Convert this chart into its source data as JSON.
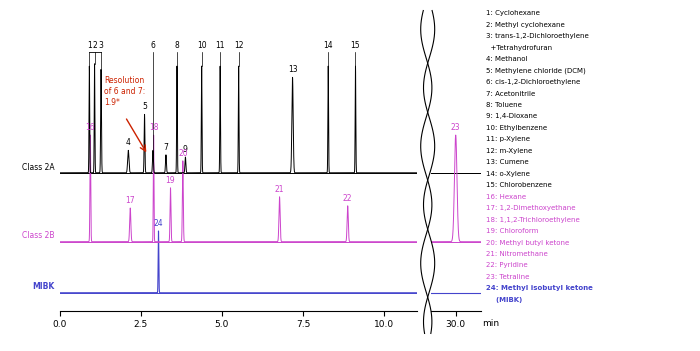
{
  "colors": {
    "black": "#000000",
    "magenta": "#cc44cc",
    "blue": "#4444cc",
    "red": "#cc2200"
  },
  "offsets": {
    "black": 0.52,
    "magenta": 0.25,
    "blue": 0.05
  },
  "scale": 0.44,
  "right_text_black": [
    "1: Cyclohexane",
    "2: Methyl cyclohexane",
    "3: trans-1,2-Dichloroethylene",
    "  +Tetrahydrofuran",
    "4: Methanol",
    "5: Methylene chloride (DCM)",
    "6: cis-1,2-Dichloroethylene",
    "7: Acetonitrile",
    "8: Toluene",
    "9: 1,4-Dioxane",
    "10: Ethylbenzene",
    "11: p-Xylene",
    "12: m-Xylene",
    "13: Cumene",
    "14: o-Xylene",
    "15: Chlorobenzene"
  ],
  "right_text_magenta": [
    "16: Hexane",
    "17: 1,2-Dimethoxyethane",
    "18: 1,1,2-Trichloroethylene",
    "19: Chloroform",
    "20: Methyl butyl ketone",
    "21: Nitromethane",
    "22: Pyridine",
    "23: Tetraline"
  ],
  "right_text_blue": [
    "24: Methyl isobutyl ketone",
    "    (MIBK)"
  ],
  "resolution_text": "Resolution\nof 6 and 7:\n1.9*",
  "class2a_label": "Class 2A",
  "class2b_label": "Class 2B",
  "mibk_label": "MIBK"
}
